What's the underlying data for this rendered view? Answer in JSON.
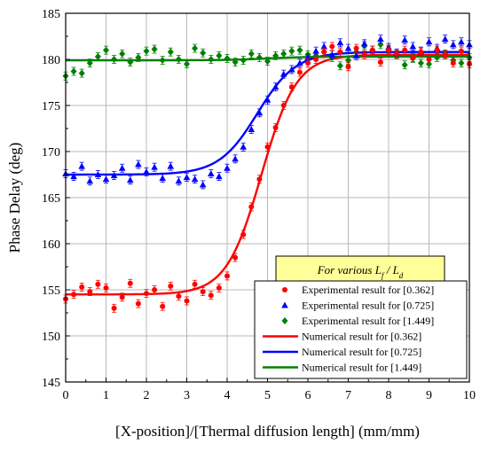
{
  "chart_data": {
    "type": "scatter",
    "xlabel": "[X-position]/[Thermal diffusion length] (mm/mm)",
    "ylabel": "Phase Delay (deg)",
    "xlim": [
      0,
      10
    ],
    "ylim": [
      145,
      185
    ],
    "x_ticks": [
      "0",
      "1",
      "2",
      "3",
      "4",
      "5",
      "6",
      "7",
      "8",
      "9",
      "10"
    ],
    "y_ticks": [
      "145",
      "150",
      "155",
      "160",
      "165",
      "170",
      "175",
      "180",
      "185"
    ],
    "grid": true,
    "legend": {
      "placement": "lower-right",
      "title_prefix": "For various",
      "title_lf": "L",
      "title_lf_sub": "f",
      "title_sep": "/",
      "title_ld": "L",
      "title_ld_sub": "d"
    },
    "series": [
      {
        "name": "Experimental result for [0.362]",
        "kind": "markers",
        "marker": "circle",
        "color": "#ff0000",
        "x": [
          0.0,
          0.2,
          0.4,
          0.6,
          0.8,
          1.0,
          1.2,
          1.4,
          1.6,
          1.8,
          2.0,
          2.2,
          2.4,
          2.6,
          2.8,
          3.0,
          3.2,
          3.4,
          3.6,
          3.8,
          4.0,
          4.2,
          4.4,
          4.6,
          4.8,
          5.0,
          5.2,
          5.4,
          5.6,
          5.8,
          6.0,
          6.2,
          6.4,
          6.6,
          6.8,
          7.0,
          7.2,
          7.4,
          7.6,
          7.8,
          8.0,
          8.2,
          8.4,
          8.6,
          8.8,
          9.0,
          9.2,
          9.4,
          9.6,
          9.8,
          10.0
        ],
        "y": [
          154.0,
          154.5,
          155.3,
          154.8,
          155.6,
          155.2,
          153.0,
          154.2,
          155.7,
          153.5,
          154.6,
          155.0,
          153.2,
          155.4,
          154.3,
          153.8,
          155.6,
          154.8,
          154.4,
          155.2,
          156.5,
          158.5,
          161.0,
          164.0,
          167.0,
          170.5,
          172.6,
          175.0,
          177.0,
          178.6,
          179.6,
          180.0,
          180.8,
          181.4,
          180.8,
          179.2,
          181.2,
          180.5,
          181.0,
          179.7,
          181.0,
          180.6,
          181.0,
          180.2,
          180.8,
          180.0,
          181.0,
          180.5,
          179.6,
          180.9,
          179.5
        ]
      },
      {
        "name": "Experimental result for [0.725]",
        "kind": "markers",
        "marker": "triangle",
        "color": "#0000ff",
        "x": [
          0.0,
          0.2,
          0.4,
          0.6,
          0.8,
          1.0,
          1.2,
          1.4,
          1.6,
          1.8,
          2.0,
          2.2,
          2.4,
          2.6,
          2.8,
          3.0,
          3.2,
          3.4,
          3.6,
          3.8,
          4.0,
          4.2,
          4.4,
          4.6,
          4.8,
          5.0,
          5.2,
          5.4,
          5.6,
          5.8,
          6.0,
          6.2,
          6.4,
          6.6,
          6.8,
          7.0,
          7.2,
          7.4,
          7.6,
          7.8,
          8.0,
          8.2,
          8.4,
          8.6,
          8.8,
          9.0,
          9.2,
          9.4,
          9.6,
          9.8,
          10.0
        ],
        "y": [
          167.6,
          167.3,
          168.4,
          166.8,
          167.5,
          167.0,
          167.4,
          168.2,
          166.9,
          168.6,
          167.8,
          168.3,
          167.1,
          168.4,
          166.8,
          167.2,
          167.0,
          166.4,
          167.6,
          167.3,
          168.2,
          169.2,
          170.5,
          172.4,
          174.2,
          175.6,
          177.0,
          178.4,
          178.9,
          179.6,
          180.2,
          180.9,
          181.4,
          180.5,
          181.8,
          181.2,
          180.4,
          181.7,
          181.0,
          182.2,
          181.3,
          180.7,
          182.1,
          181.4,
          180.9,
          181.9,
          181.2,
          182.2,
          181.6,
          181.9,
          181.6
        ]
      },
      {
        "name": "Experimental result for [1.449]",
        "kind": "markers",
        "marker": "diamond",
        "color": "#008000",
        "x": [
          0.0,
          0.2,
          0.4,
          0.6,
          0.8,
          1.0,
          1.2,
          1.4,
          1.6,
          1.8,
          2.0,
          2.2,
          2.4,
          2.6,
          2.8,
          3.0,
          3.2,
          3.4,
          3.6,
          3.8,
          4.0,
          4.2,
          4.4,
          4.6,
          4.8,
          5.0,
          5.2,
          5.4,
          5.6,
          5.8,
          6.0,
          6.2,
          6.4,
          6.6,
          6.8,
          7.0,
          7.2,
          7.4,
          7.6,
          7.8,
          8.0,
          8.2,
          8.4,
          8.6,
          8.8,
          9.0,
          9.2,
          9.4,
          9.6,
          9.8,
          10.0
        ],
        "y": [
          178.2,
          178.7,
          178.5,
          179.6,
          180.3,
          181.0,
          180.0,
          180.6,
          179.7,
          180.2,
          180.9,
          181.1,
          179.9,
          180.8,
          180.0,
          179.5,
          181.2,
          180.7,
          180.0,
          180.4,
          180.1,
          179.7,
          179.9,
          180.6,
          180.2,
          179.8,
          180.4,
          180.6,
          180.9,
          181.0,
          180.5,
          180.4,
          180.8,
          180.2,
          179.3,
          179.9,
          180.8,
          181.5,
          181.0,
          181.6,
          181.1,
          180.5,
          179.4,
          180.1,
          179.6,
          179.5,
          180.2,
          180.6,
          179.9,
          179.6,
          180.2
        ]
      },
      {
        "name": "Numerical result for [0.362]",
        "kind": "line",
        "color": "#ff0000",
        "y0": 154.5,
        "y1": 180.5,
        "x0": 4.85,
        "k": 2.3
      },
      {
        "name": "Numerical result for [0.725]",
        "kind": "line",
        "color": "#0000ff",
        "y0": 167.5,
        "y1": 180.8,
        "x0": 4.75,
        "k": 2.1
      },
      {
        "name": "Numerical result for [1.449]",
        "kind": "line",
        "color": "#008000",
        "y0": 179.9,
        "y1": 180.3,
        "x0": 5.0,
        "k": 2.0
      }
    ]
  }
}
